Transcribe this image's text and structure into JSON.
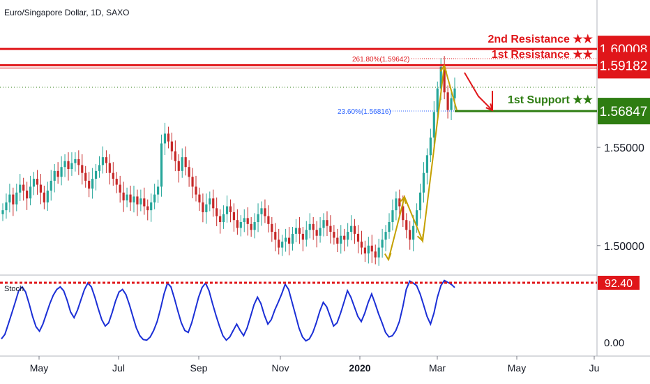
{
  "title": "Euro/Singapore Dollar, 1D, SAXO",
  "colors": {
    "bull": "#26a69a",
    "bear": "#c62828",
    "resistance": "#e0161a",
    "support": "#2e7d12",
    "fib_support": "#2962ff",
    "stoch": "#1b2fd6",
    "arrow_gold": "#c4a000",
    "arrow_red": "#e0161a"
  },
  "chart_data": {
    "type": "candlestick",
    "price_axis": {
      "ylim": [
        1.485,
        1.625
      ],
      "ticks": [
        "1.50000",
        "1.55000"
      ]
    },
    "time_axis": {
      "ticks": [
        "May",
        "Jul",
        "Sep",
        "Nov",
        "2020",
        "Mar",
        "May",
        "Ju"
      ]
    },
    "levels": [
      {
        "label": "2nd Resistance ★★",
        "value": 1.60008,
        "badge": "1.60008",
        "kind": "resistance"
      },
      {
        "label": "1st Resistance ★★",
        "value": 1.59182,
        "badge": "1.59182",
        "kind": "resistance"
      },
      {
        "label": "1st Support ★★",
        "value": 1.56847,
        "badge": "1.56847",
        "kind": "support"
      }
    ],
    "fib_labels": [
      {
        "text": "261.80%(1.59642)",
        "value": 1.59642
      },
      {
        "text": "23.60%(1.56816)",
        "value": 1.56816
      }
    ],
    "closes": [
      1.518,
      1.522,
      1.526,
      1.521,
      1.527,
      1.531,
      1.528,
      1.524,
      1.53,
      1.534,
      1.531,
      1.527,
      1.522,
      1.528,
      1.533,
      1.538,
      1.535,
      1.54,
      1.543,
      1.539,
      1.542,
      1.544,
      1.541,
      1.537,
      1.533,
      1.529,
      1.534,
      1.538,
      1.541,
      1.545,
      1.542,
      1.537,
      1.534,
      1.531,
      1.527,
      1.523,
      1.526,
      1.522,
      1.525,
      1.521,
      1.524,
      1.52,
      1.518,
      1.522,
      1.526,
      1.53,
      1.552,
      1.557,
      1.553,
      1.548,
      1.543,
      1.538,
      1.545,
      1.54,
      1.535,
      1.53,
      1.526,
      1.522,
      1.517,
      1.521,
      1.524,
      1.519,
      1.515,
      1.512,
      1.516,
      1.52,
      1.517,
      1.513,
      1.509,
      1.512,
      1.514,
      1.511,
      1.508,
      1.512,
      1.516,
      1.519,
      1.515,
      1.511,
      1.507,
      1.503,
      1.499,
      1.502,
      1.504,
      1.501,
      1.506,
      1.509,
      1.506,
      1.503,
      1.508,
      1.511,
      1.508,
      1.505,
      1.509,
      1.513,
      1.51,
      1.507,
      1.504,
      1.501,
      1.505,
      1.503,
      1.507,
      1.51,
      1.506,
      1.502,
      1.499,
      1.496,
      1.5,
      1.497,
      1.494,
      1.499,
      1.503,
      1.507,
      1.512,
      1.518,
      1.524,
      1.52,
      1.513,
      1.508,
      1.503,
      1.51,
      1.518,
      1.527,
      1.537,
      1.546,
      1.555,
      1.568,
      1.58,
      1.591,
      1.578,
      1.569,
      1.575,
      1.58
    ],
    "stoch": {
      "ylim": [
        0,
        100
      ],
      "ticks": [
        "0.00"
      ],
      "marker": {
        "value": 92.4,
        "badge": "92.40"
      },
      "values": [
        5,
        12,
        28,
        45,
        62,
        80,
        86,
        78,
        60,
        40,
        24,
        17,
        28,
        44,
        60,
        73,
        82,
        86,
        80,
        65,
        47,
        38,
        50,
        66,
        82,
        92,
        86,
        70,
        52,
        35,
        25,
        30,
        46,
        64,
        78,
        82,
        74,
        58,
        40,
        22,
        10,
        4,
        3,
        8,
        18,
        32,
        52,
        75,
        92,
        86,
        68,
        48,
        30,
        18,
        15,
        30,
        50,
        70,
        85,
        92,
        80,
        60,
        42,
        25,
        10,
        3,
        8,
        18,
        28,
        18,
        10,
        22,
        40,
        58,
        70,
        60,
        42,
        28,
        35,
        50,
        62,
        75,
        90,
        82,
        62,
        42,
        22,
        8,
        2,
        5,
        15,
        30,
        48,
        62,
        55,
        40,
        25,
        30,
        45,
        62,
        80,
        70,
        55,
        40,
        32,
        45,
        62,
        75,
        60,
        44,
        30,
        15,
        8,
        10,
        18,
        32,
        55,
        82,
        95,
        92,
        88,
        75,
        58,
        40,
        28,
        45,
        70,
        88,
        96,
        93,
        90,
        85
      ]
    }
  }
}
